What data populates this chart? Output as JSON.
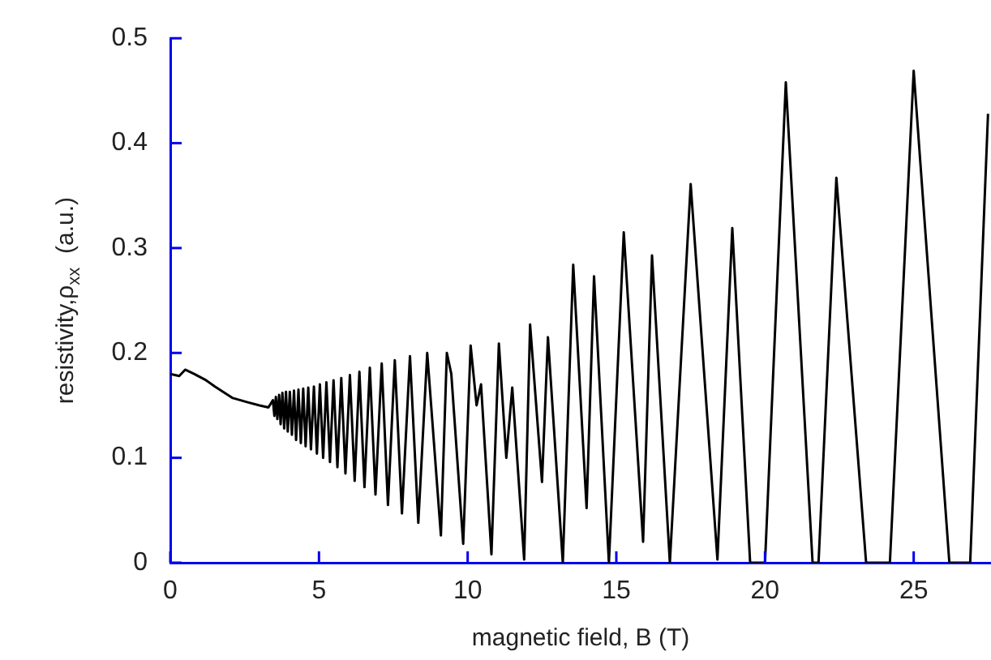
{
  "chart_data": {
    "type": "line",
    "xlabel": "magnetic field, B (T)",
    "ylabel": "resistivity,ρ$_{xx}$  (a.u.)",
    "color": "#000000",
    "xlim": [
      0,
      27.6
    ],
    "ylim": [
      0,
      0.5
    ],
    "xticks": [
      0,
      5,
      10,
      15,
      20,
      25
    ],
    "yticks": [
      0,
      0.1,
      0.2,
      0.3,
      0.4,
      0.5
    ],
    "x": [
      0,
      0.3,
      0.5,
      0.8,
      1.2,
      1.5,
      2.1,
      2.6,
      3.0,
      3.3,
      3.45,
      3.5,
      3.55,
      3.6,
      3.66,
      3.71,
      3.77,
      3.83,
      3.89,
      3.95,
      4.02,
      4.09,
      4.16,
      4.23,
      4.31,
      4.39,
      4.47,
      4.55,
      4.64,
      4.73,
      4.83,
      4.93,
      5.03,
      5.14,
      5.25,
      5.37,
      5.49,
      5.62,
      5.75,
      5.89,
      6.04,
      6.2,
      6.36,
      6.53,
      6.71,
      6.9,
      7.11,
      7.32,
      7.55,
      7.79,
      8.06,
      8.34,
      8.64,
      9.1,
      9.3,
      9.45,
      9.85,
      10.1,
      10.3,
      10.45,
      10.8,
      11.05,
      11.3,
      11.5,
      11.9,
      12.1,
      12.5,
      12.7,
      13.2,
      13.55,
      14.0,
      14.25,
      14.75,
      15.25,
      15.9,
      16.2,
      16.8,
      17.5,
      18.4,
      18.9,
      19.5,
      20.0,
      20.7,
      21.6,
      21.8,
      22.4,
      23.4,
      24.2,
      25.0,
      26.2,
      26.9,
      27.5
    ],
    "values": [
      0.18,
      0.178,
      0.184,
      0.18,
      0.174,
      0.168,
      0.157,
      0.153,
      0.15,
      0.148,
      0.155,
      0.14,
      0.158,
      0.137,
      0.16,
      0.132,
      0.162,
      0.128,
      0.163,
      0.125,
      0.163,
      0.122,
      0.164,
      0.117,
      0.165,
      0.114,
      0.166,
      0.111,
      0.167,
      0.108,
      0.168,
      0.104,
      0.17,
      0.1,
      0.172,
      0.096,
      0.174,
      0.091,
      0.176,
      0.085,
      0.179,
      0.078,
      0.182,
      0.072,
      0.186,
      0.065,
      0.19,
      0.055,
      0.193,
      0.047,
      0.197,
      0.038,
      0.2,
      0.026,
      0.2,
      0.18,
      0.018,
      0.207,
      0.15,
      0.17,
      0.008,
      0.209,
      0.1,
      0.167,
      0.003,
      0.227,
      0.077,
      0.215,
      0,
      0.284,
      0.052,
      0.273,
      0,
      0.315,
      0.02,
      0.293,
      0,
      0.361,
      0.003,
      0.319,
      0,
      0,
      0.458,
      0,
      0,
      0.367,
      0,
      0,
      0.469,
      0,
      0,
      0.428
    ]
  }
}
